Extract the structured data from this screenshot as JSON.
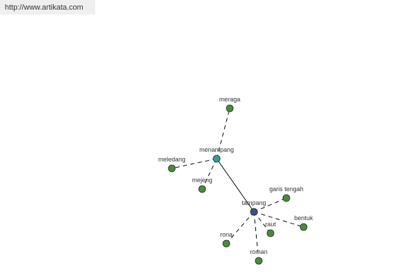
{
  "watermark": "http://www.artikata.com",
  "colors": {
    "root": "#3a4f8f",
    "hub": "#3f9a9a",
    "leaf": "#4c8a3c",
    "edge": "#000000"
  },
  "nodes": [
    {
      "id": "tampang",
      "label": "tampang",
      "type": "root"
    },
    {
      "id": "menampang",
      "label": "menampang",
      "type": "hub"
    },
    {
      "id": "meraga",
      "label": "meraga",
      "type": "leaf"
    },
    {
      "id": "meledang",
      "label": "meledang",
      "type": "leaf"
    },
    {
      "id": "mejeng",
      "label": "mejeng",
      "type": "leaf"
    },
    {
      "id": "garis tengah",
      "label": "garis tengah",
      "type": "leaf"
    },
    {
      "id": "bentuk",
      "label": "bentuk",
      "type": "leaf"
    },
    {
      "id": "raut",
      "label": "raut",
      "type": "leaf"
    },
    {
      "id": "rona",
      "label": "rona",
      "type": "leaf"
    },
    {
      "id": "roman",
      "label": "roman",
      "type": "leaf"
    }
  ],
  "edges": [
    {
      "from": "tampang",
      "to": "menampang",
      "style": "solid"
    },
    {
      "from": "menampang",
      "to": "meraga",
      "style": "dashed"
    },
    {
      "from": "menampang",
      "to": "meledang",
      "style": "dashed"
    },
    {
      "from": "menampang",
      "to": "mejeng",
      "style": "dashed"
    },
    {
      "from": "tampang",
      "to": "garis tengah",
      "style": "dashed"
    },
    {
      "from": "tampang",
      "to": "bentuk",
      "style": "dashed"
    },
    {
      "from": "tampang",
      "to": "raut",
      "style": "dashed"
    },
    {
      "from": "tampang",
      "to": "rona",
      "style": "dashed"
    },
    {
      "from": "tampang",
      "to": "roman",
      "style": "dashed"
    }
  ]
}
